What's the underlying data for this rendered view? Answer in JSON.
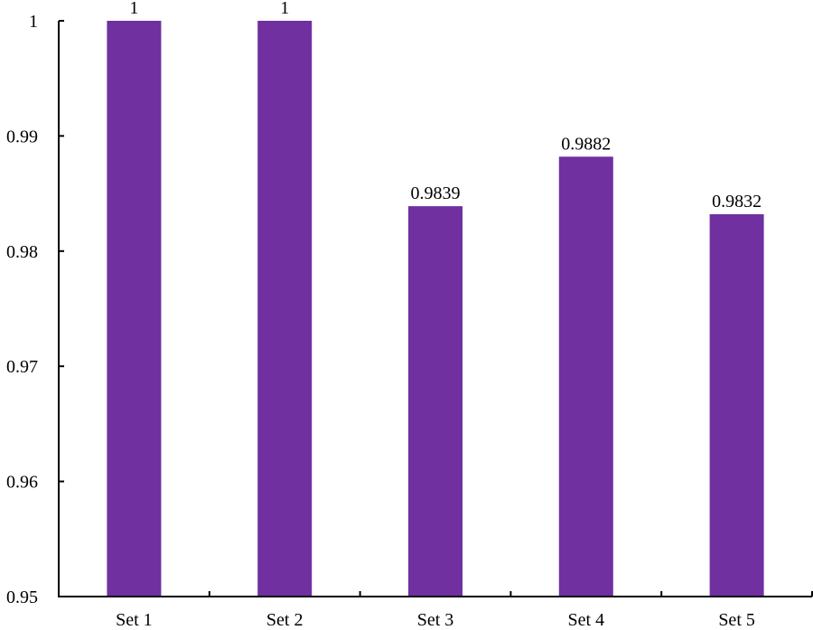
{
  "chart_data": {
    "type": "bar",
    "categories": [
      "Set 1",
      "Set 2",
      "Set 3",
      "Set 4",
      "Set 5"
    ],
    "values": [
      1,
      1,
      0.9839,
      0.9882,
      0.9832
    ],
    "data_labels": [
      "1",
      "1",
      "0.9839",
      "0.9882",
      "0.9832"
    ],
    "title": "",
    "xlabel": "",
    "ylabel": "",
    "ylim": [
      0.95,
      1
    ],
    "yticks": [
      0.95,
      0.96,
      0.97,
      0.98,
      0.99,
      1
    ],
    "ytick_labels": [
      "0.95",
      "0.96",
      "0.97",
      "0.98",
      "0.99",
      "1"
    ],
    "grid": false,
    "legend": "none",
    "bar_color": "#7030A0"
  }
}
